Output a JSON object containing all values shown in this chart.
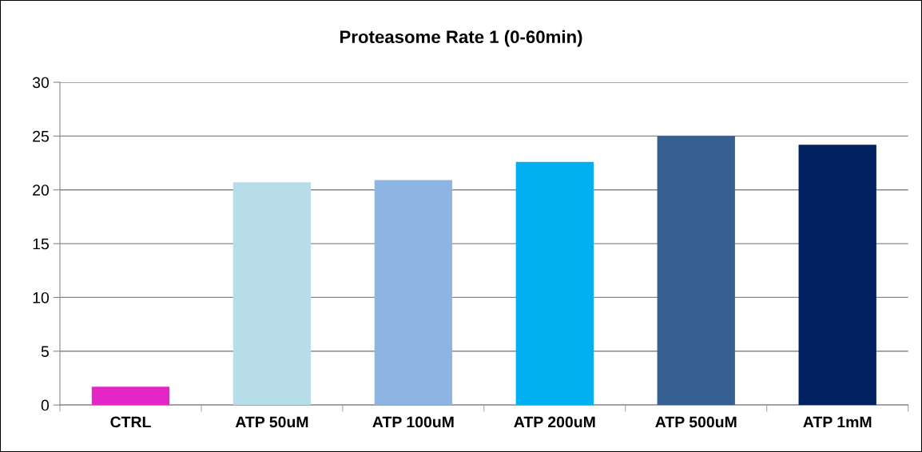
{
  "chart_data": {
    "type": "bar",
    "title": "Proteasome Rate 1 (0-60min)",
    "categories": [
      "CTRL",
      "ATP 50uM",
      "ATP 100uM",
      "ATP 200uM",
      "ATP 500uM",
      "ATP 1mM"
    ],
    "values": [
      1.7,
      20.7,
      20.9,
      22.6,
      25.0,
      24.2
    ],
    "colors": [
      "#e526c6",
      "#b7dde8",
      "#8eb4e3",
      "#00b0f0",
      "#376092",
      "#002060"
    ],
    "ylim": [
      0,
      30
    ],
    "yticks": [
      0,
      5,
      10,
      15,
      20,
      25,
      30
    ],
    "grid": "y",
    "legend": false
  }
}
